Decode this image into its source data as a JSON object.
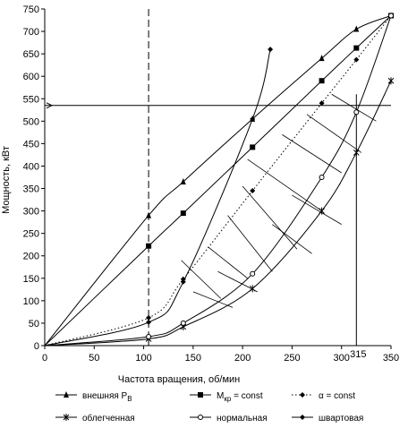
{
  "chart_data": {
    "type": "line",
    "ylabel": "Мощность, кВт",
    "xlabel": "Частота вращения, об/мин",
    "xlim": [
      0,
      350
    ],
    "ylim": [
      0,
      750
    ],
    "x_ticks": [
      "0",
      "50",
      "100",
      "150",
      "200",
      "250",
      "300",
      "350"
    ],
    "extra_x_tick": "315",
    "y_ticks": [
      "0",
      "50",
      "100",
      "150",
      "200",
      "250",
      "300",
      "350",
      "400",
      "450",
      "500",
      "550",
      "600",
      "650",
      "700",
      "750"
    ],
    "grid": false,
    "legend_position": "bottom",
    "series": [
      {
        "name": "внешняя P",
        "name_sub": "B",
        "marker": "triangle",
        "points": [
          [
            105,
            290
          ],
          [
            140,
            365
          ],
          [
            210,
            505
          ],
          [
            280,
            640
          ],
          [
            315,
            705
          ],
          [
            350,
            735
          ]
        ]
      },
      {
        "name": "M",
        "name_sub": "кр",
        "name_suffix": " = const",
        "marker": "square",
        "points": [
          [
            105,
            222
          ],
          [
            140,
            295
          ],
          [
            210,
            442
          ],
          [
            280,
            590
          ],
          [
            315,
            663
          ],
          [
            350,
            735
          ]
        ]
      },
      {
        "name": "α = const",
        "marker": "diamond",
        "dotted": true,
        "points": [
          [
            105,
            62
          ],
          [
            140,
            148
          ],
          [
            210,
            345
          ],
          [
            280,
            540
          ],
          [
            315,
            637
          ],
          [
            350,
            735
          ]
        ]
      },
      {
        "name": "облегченная",
        "marker": "star",
        "points": [
          [
            105,
            15
          ],
          [
            140,
            42
          ],
          [
            210,
            127
          ],
          [
            280,
            300
          ],
          [
            315,
            430
          ],
          [
            350,
            590
          ]
        ]
      },
      {
        "name": "нормальная",
        "marker": "circle-open",
        "points": [
          [
            105,
            20
          ],
          [
            140,
            50
          ],
          [
            210,
            160
          ],
          [
            280,
            375
          ],
          [
            315,
            520
          ],
          [
            350,
            735
          ]
        ]
      },
      {
        "name": "швартовая",
        "marker": "diamond",
        "points": [
          [
            105,
            52
          ],
          [
            140,
            142
          ],
          [
            210,
            505
          ],
          [
            228,
            660
          ]
        ]
      }
    ],
    "reference_lines": {
      "vertical_dashed_x": 105,
      "vertical_solid_x": 315,
      "horizontal_y": 535
    }
  }
}
